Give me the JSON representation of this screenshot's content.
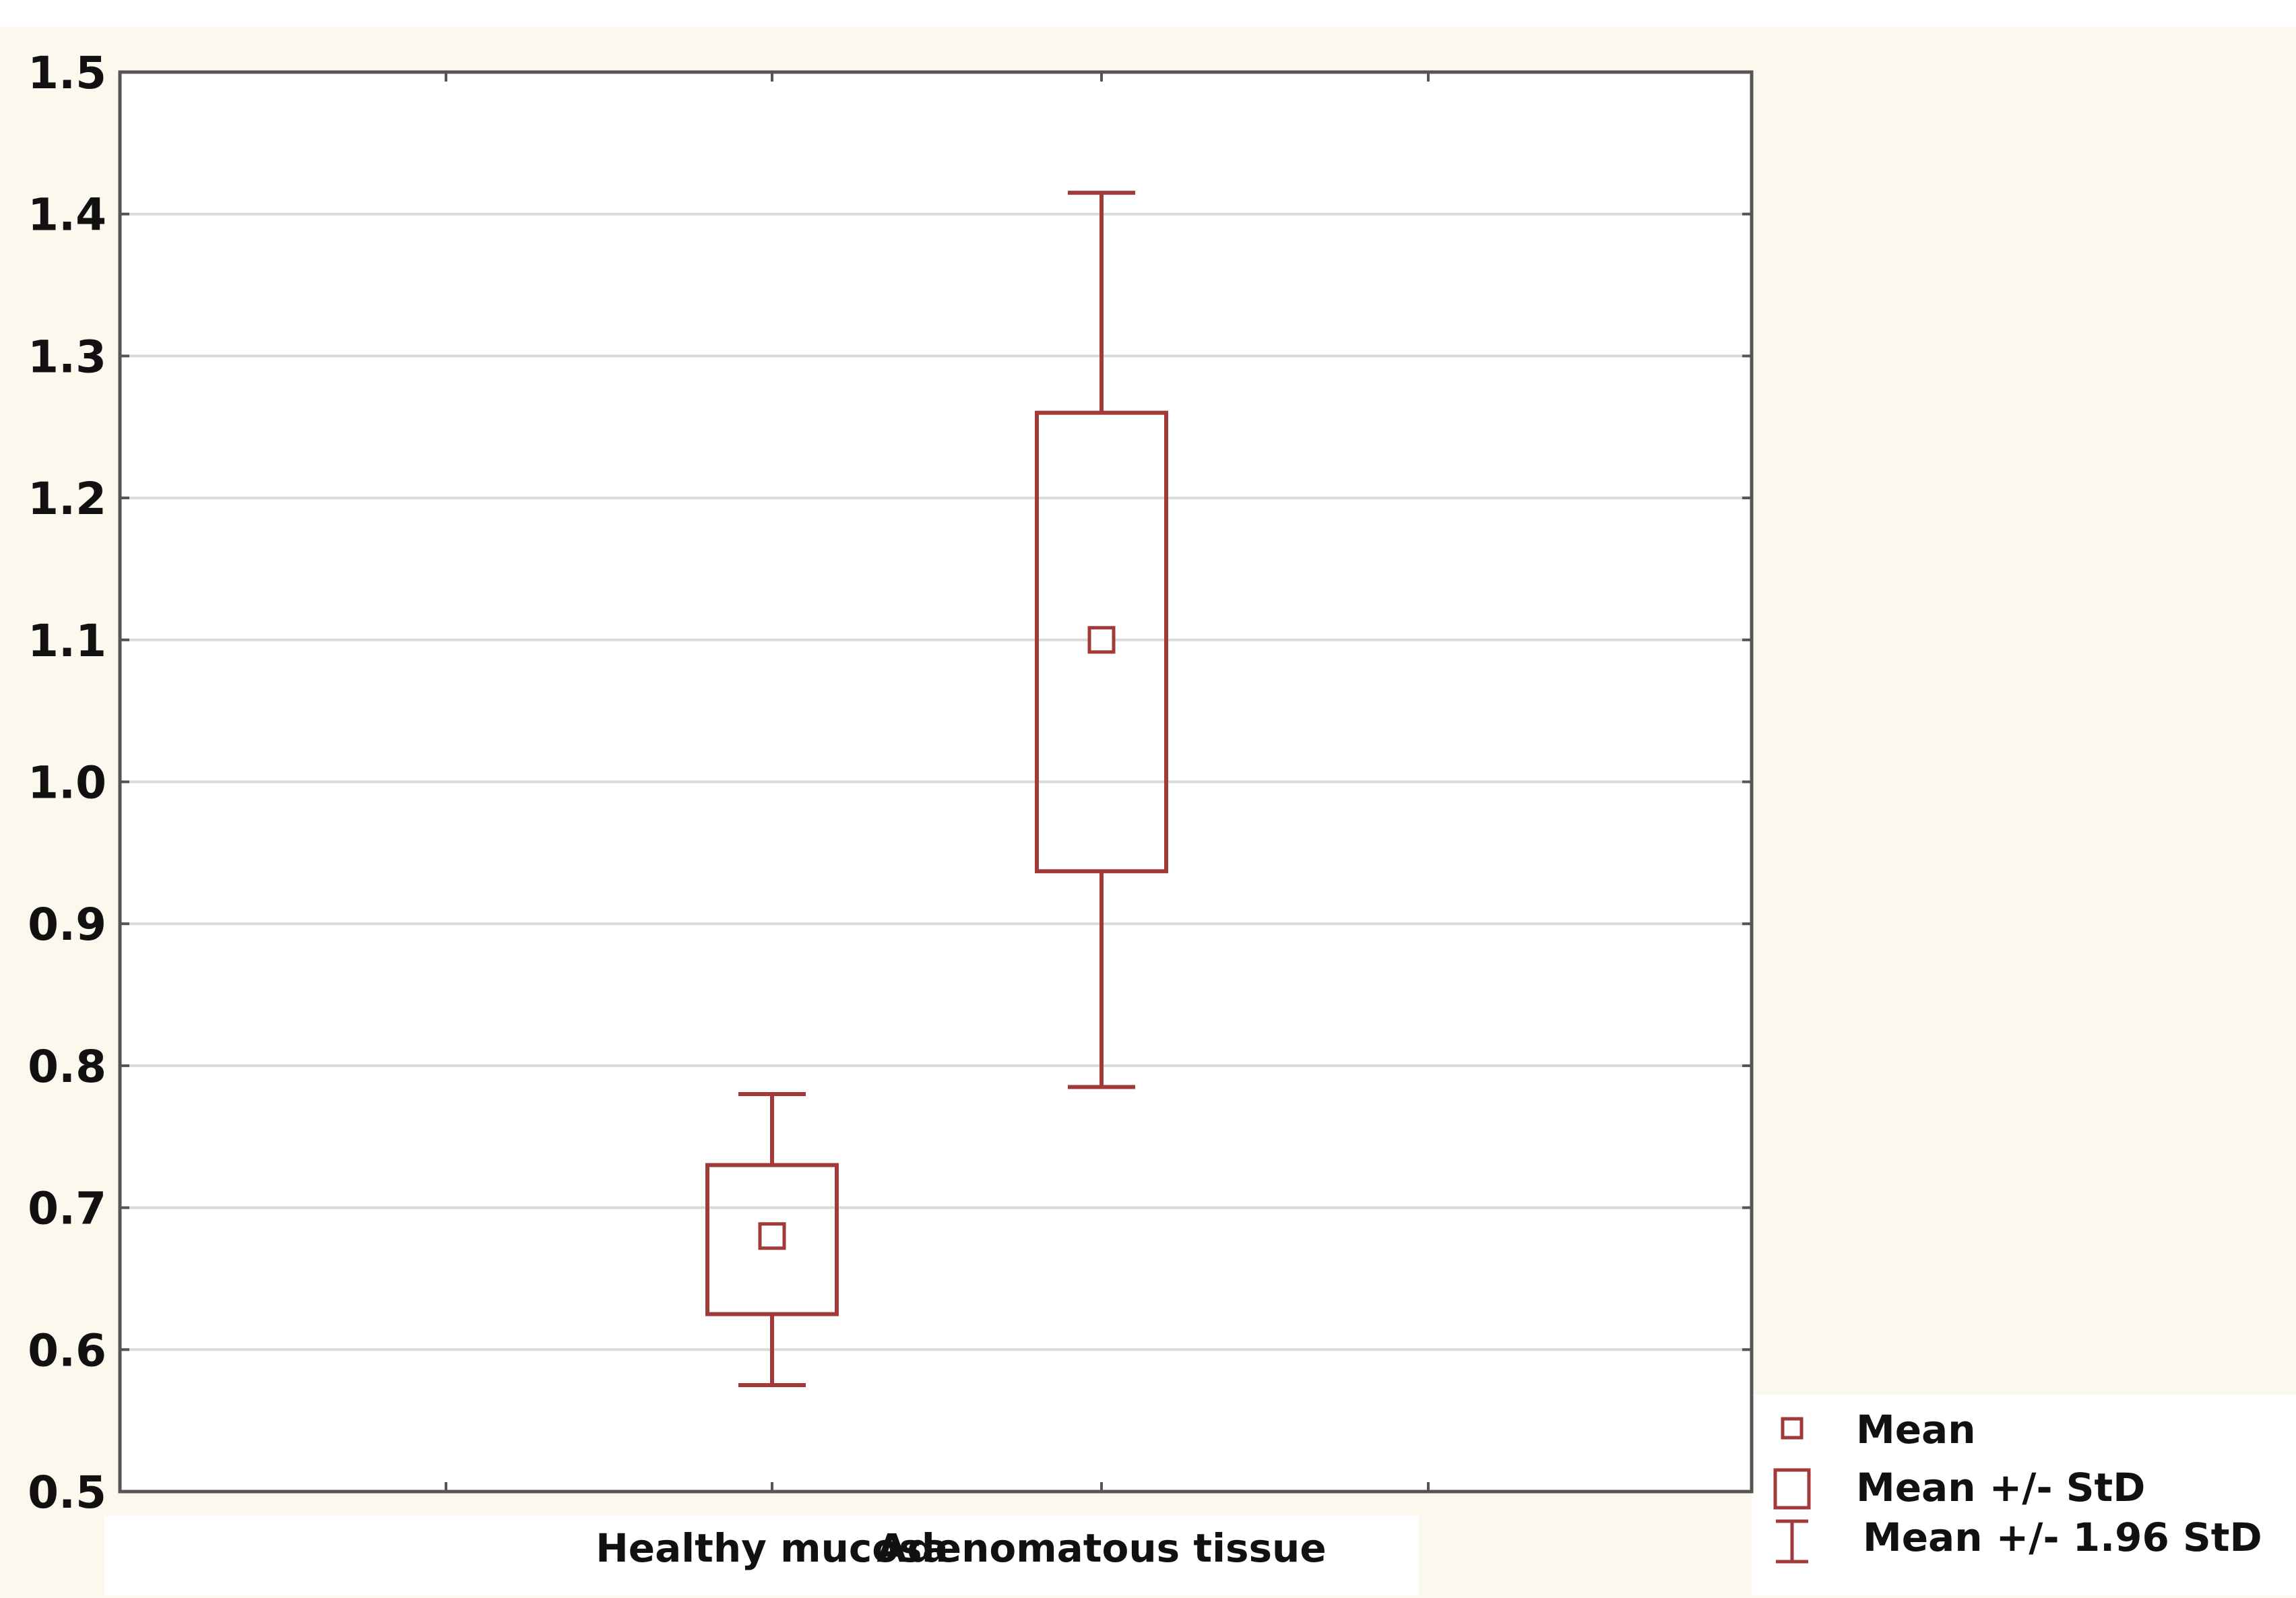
{
  "chart_data": {
    "type": "box",
    "categories": [
      "Healthy mucosa",
      "Adenomatous tissue"
    ],
    "series": [
      {
        "category": "Healthy mucosa",
        "mean": 0.68,
        "mean_minus_std": 0.625,
        "mean_plus_std": 0.73,
        "mean_minus_1_96_std": 0.575,
        "mean_plus_1_96_std": 0.78
      },
      {
        "category": "Adenomatous tissue",
        "mean": 1.1,
        "mean_minus_std": 0.937,
        "mean_plus_std": 1.26,
        "mean_minus_1_96_std": 0.785,
        "mean_plus_1_96_std": 1.415
      }
    ],
    "title": "",
    "xlabel": "",
    "ylabel": "",
    "ylim": [
      0.5,
      1.5
    ],
    "yticks": [
      "0.5",
      "0.6",
      "0.7",
      "0.8",
      "0.9",
      "1.0",
      "1.1",
      "1.2",
      "1.3",
      "1.4",
      "1.5"
    ],
    "grid": true,
    "legend": {
      "placement": "bottom-right",
      "items": [
        {
          "symbol": "mean-marker",
          "label": "Mean"
        },
        {
          "symbol": "box",
          "label": "Mean +/- StD"
        },
        {
          "symbol": "whisker",
          "label": "Mean +/- 1.96 StD"
        }
      ]
    },
    "colors": {
      "series": "#a33a3a",
      "grid": "#d9d9d9",
      "axis": "#555555",
      "plot_background": "#ffffff",
      "page_background": "#fdf8ee"
    }
  }
}
